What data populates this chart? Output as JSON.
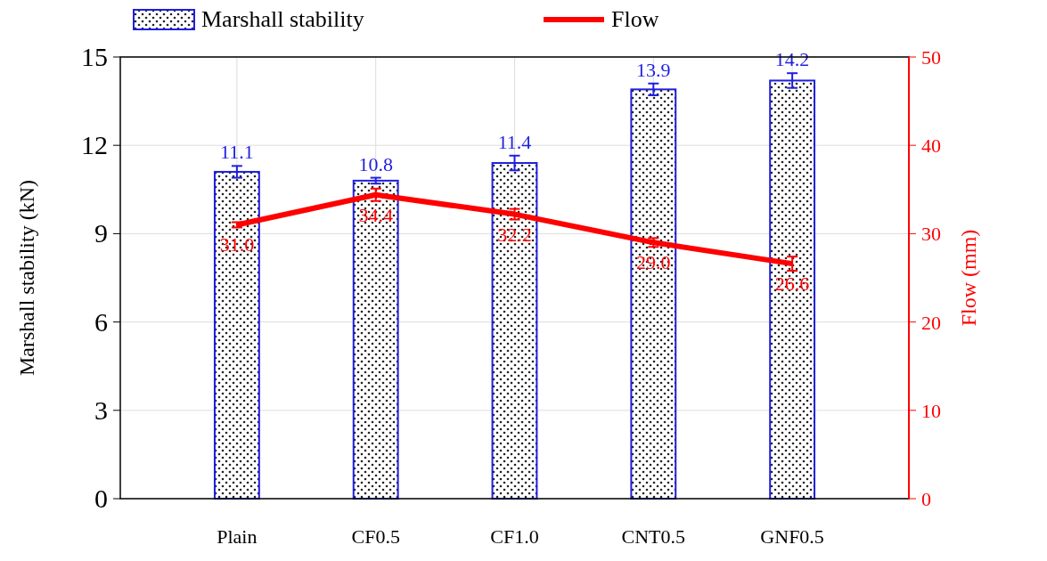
{
  "chart_data": {
    "type": "bar",
    "categories": [
      "Plain",
      "CF0.5",
      "CF1.0",
      "CNT0.5",
      "GNF0.5"
    ],
    "series": [
      {
        "name": "Marshall stability",
        "color": "#1f1fe0",
        "values": [
          11.1,
          10.8,
          11.4,
          13.9,
          14.2
        ],
        "errors": [
          0.2,
          0.1,
          0.25,
          0.2,
          0.25
        ],
        "value_labels": [
          "11.1",
          "10.8",
          "11.4",
          "13.9",
          "14.2"
        ]
      },
      {
        "name": "Flow",
        "type": "line",
        "axis": "y2",
        "color": "#ff0000",
        "values": [
          31.0,
          34.4,
          32.2,
          29.0,
          26.6
        ],
        "errors": [
          0.3,
          0.7,
          0.6,
          0.5,
          0.8
        ],
        "value_labels": [
          "31.0",
          "34.4",
          "32.2",
          "29.0",
          "26.6"
        ]
      }
    ],
    "ylabel": "Marshall stability (kN)",
    "y2label": "Flow (mm)",
    "ylim": [
      0,
      15
    ],
    "yticks": [
      0,
      3,
      6,
      9,
      12,
      15
    ],
    "y2lim": [
      0,
      50
    ],
    "y2ticks": [
      0,
      10,
      20,
      30,
      40,
      50
    ],
    "grid": true,
    "legend": "top",
    "marker": "none",
    "line_style": "solid"
  }
}
